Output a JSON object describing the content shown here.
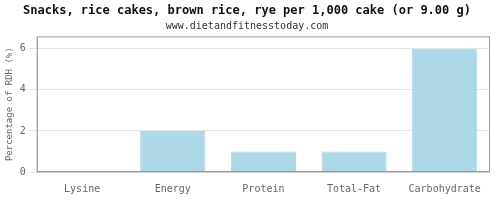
{
  "chart_data": {
    "type": "bar",
    "title": "Snacks, rice cakes, brown rice, rye per 1,000 cake (or 9.00 g)",
    "subtitle": "www.dietandfitnesstoday.com",
    "ylabel": "Percentage of RDH (%)",
    "categories": [
      "Lysine",
      "Energy",
      "Protein",
      "Total-Fat",
      "Carbohydrate"
    ],
    "values": [
      0,
      2,
      1,
      1,
      6
    ],
    "color": "#add8e6",
    "ylim": [
      0,
      6.6
    ],
    "yticks": [
      0,
      2,
      4,
      6
    ],
    "grid": true
  }
}
